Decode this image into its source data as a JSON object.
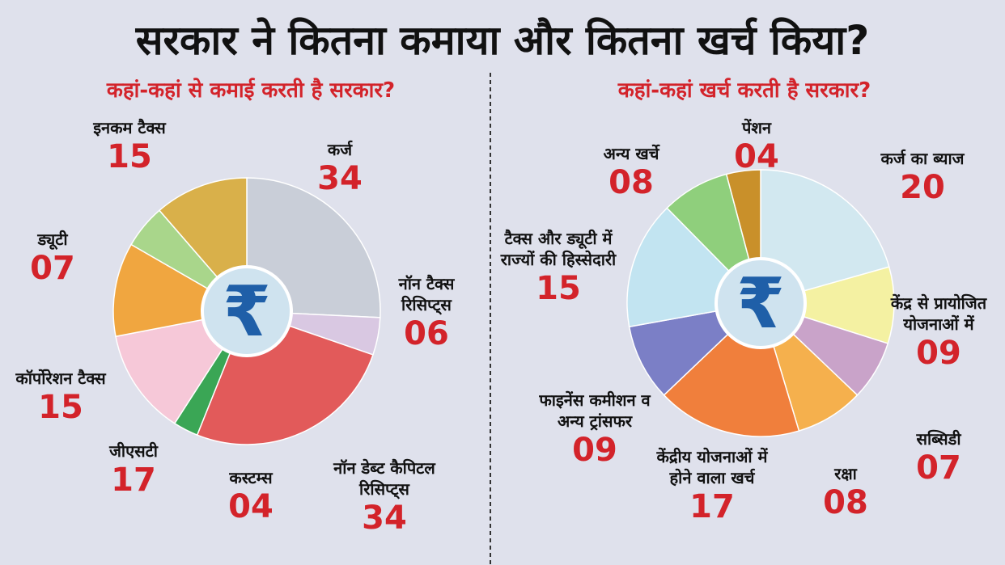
{
  "title": "सरकार ने कितना कमाया और कितना खर्च किया?",
  "chart_data": [
    {
      "type": "pie",
      "title": "कहां-कहां से कमाई करती है सरकार?",
      "center_label": "₹",
      "categories": [
        "कर्ज",
        "नॉन टैक्स रिसिप्ट्स",
        "नॉन डेब्ट कैपिटल रिसिप्ट्स",
        "कस्टम्स",
        "जीएसटी",
        "कॉर्पोरेशन टैक्स",
        "ड्यूटी",
        "इनकम टैक्स"
      ],
      "values": [
        34,
        6,
        34,
        4,
        17,
        15,
        7,
        15
      ],
      "value_labels": [
        "34",
        "06",
        "34",
        "04",
        "17",
        "15",
        "07",
        "15"
      ],
      "colors": [
        "#c9ced8",
        "#d9c8e2",
        "#e25a5a",
        "#3aa655",
        "#f6c8d8",
        "#f0a640",
        "#a9d68b",
        "#d9b04a"
      ]
    },
    {
      "type": "pie",
      "title": "कहां-कहां खर्च करती है सरकार?",
      "center_label": "₹",
      "categories": [
        "कर्ज का ब्याज",
        "केंद्र से प्रायोजित योजनाओं में",
        "सब्सिडी",
        "रक्षा",
        "केंद्रीय योजनाओं में होने वाला खर्च",
        "फाइनेंस कमीशन व अन्य ट्रांसफर",
        "टैक्स और ड्यूटी में राज्यों की हिस्सेदारी",
        "अन्य खर्चे",
        "पेंशन"
      ],
      "values": [
        20,
        9,
        7,
        8,
        17,
        9,
        15,
        8,
        4
      ],
      "value_labels": [
        "20",
        "09",
        "07",
        "08",
        "17",
        "09",
        "15",
        "08",
        "04"
      ],
      "colors": [
        "#d2e8f0",
        "#f4f1a2",
        "#c9a3c9",
        "#f5b04d",
        "#f07f3c",
        "#7b7fc6",
        "#c2e4f1",
        "#8fcf7c",
        "#c9902a"
      ]
    }
  ]
}
